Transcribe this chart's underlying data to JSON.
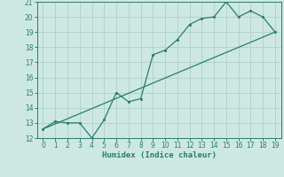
{
  "title": "",
  "xlabel": "Humidex (Indice chaleur)",
  "x_data": [
    0,
    1,
    2,
    3,
    4,
    5,
    6,
    7,
    8,
    9,
    10,
    11,
    12,
    13,
    14,
    15,
    16,
    17,
    18,
    19
  ],
  "y_line1": [
    12.6,
    13.1,
    13.0,
    13.0,
    12.0,
    13.2,
    15.0,
    14.4,
    14.6,
    17.5,
    17.8,
    18.5,
    19.5,
    19.9,
    20.0,
    21.0,
    20.0,
    20.4,
    20.0,
    19.0
  ],
  "y_line2_x": [
    0,
    19
  ],
  "y_line2_y": [
    12.6,
    19.0
  ],
  "line_color": "#2a7d6e",
  "bg_color": "#cde8e2",
  "grid_color": "#aecfc8",
  "tick_color": "#2a7d6e",
  "ylim": [
    12,
    21
  ],
  "xlim": [
    -0.5,
    19.5
  ],
  "yticks": [
    12,
    13,
    14,
    15,
    16,
    17,
    18,
    19,
    20,
    21
  ],
  "xticks": [
    0,
    1,
    2,
    3,
    4,
    5,
    6,
    7,
    8,
    9,
    10,
    11,
    12,
    13,
    14,
    15,
    16,
    17,
    18,
    19
  ]
}
